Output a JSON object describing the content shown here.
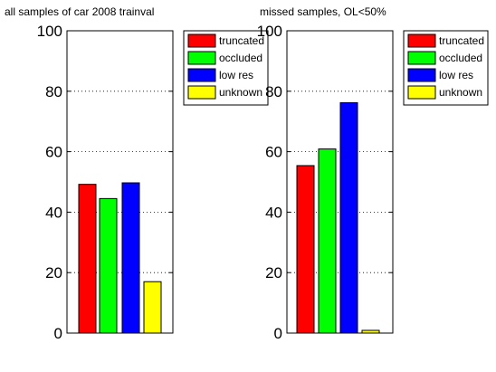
{
  "chart_data": [
    {
      "type": "bar",
      "title": "all samples of car 2008 trainval",
      "xlabel": "",
      "ylabel": "",
      "ylim": [
        0,
        100
      ],
      "yticks": [
        0,
        20,
        40,
        60,
        80,
        100
      ],
      "grid": true,
      "legend_position": "top-right",
      "categories": [
        "truncated",
        "occluded",
        "low res",
        "unknown"
      ],
      "values": [
        49.2,
        44.5,
        49.7,
        17.0
      ],
      "colors": [
        "#ff0000",
        "#00ff00",
        "#0000ff",
        "#ffff00"
      ]
    },
    {
      "type": "bar",
      "title": "missed samples,  OL<50%",
      "xlabel": "",
      "ylabel": "",
      "ylim": [
        0,
        100
      ],
      "yticks": [
        0,
        20,
        40,
        60,
        80,
        100
      ],
      "grid": true,
      "legend_position": "top-right",
      "categories": [
        "truncated",
        "occluded",
        "low res",
        "unknown"
      ],
      "values": [
        55.4,
        60.9,
        76.2,
        0.9
      ],
      "colors": [
        "#ff0000",
        "#00ff00",
        "#0000ff",
        "#ffff00"
      ]
    }
  ]
}
